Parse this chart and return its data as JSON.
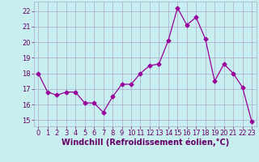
{
  "x": [
    0,
    1,
    2,
    3,
    4,
    5,
    6,
    7,
    8,
    9,
    10,
    11,
    12,
    13,
    14,
    15,
    16,
    17,
    18,
    19,
    20,
    21,
    22,
    23
  ],
  "y": [
    18.0,
    16.8,
    16.6,
    16.8,
    16.8,
    16.1,
    16.1,
    15.5,
    16.5,
    17.3,
    17.3,
    18.0,
    18.5,
    18.6,
    20.1,
    22.2,
    21.1,
    21.6,
    20.2,
    17.5,
    18.6,
    18.0,
    17.1,
    14.9
  ],
  "line_color": "#990099",
  "marker": "D",
  "marker_size": 2.5,
  "bg_color": "#c8eef0",
  "grid_color": "#aaaacc",
  "xlabel": "Windchill (Refroidissement éolien,°C)",
  "xlabel_fontsize": 7,
  "ylabel_ticks": [
    15,
    16,
    17,
    18,
    19,
    20,
    21,
    22
  ],
  "xlim": [
    -0.5,
    23.5
  ],
  "ylim": [
    14.6,
    22.6
  ],
  "xtick_labels": [
    "0",
    "1",
    "2",
    "3",
    "4",
    "5",
    "6",
    "7",
    "8",
    "9",
    "10",
    "11",
    "12",
    "13",
    "14",
    "15",
    "16",
    "17",
    "18",
    "19",
    "20",
    "21",
    "22",
    "23"
  ],
  "tick_fontsize": 6.0,
  "text_color": "#660066"
}
